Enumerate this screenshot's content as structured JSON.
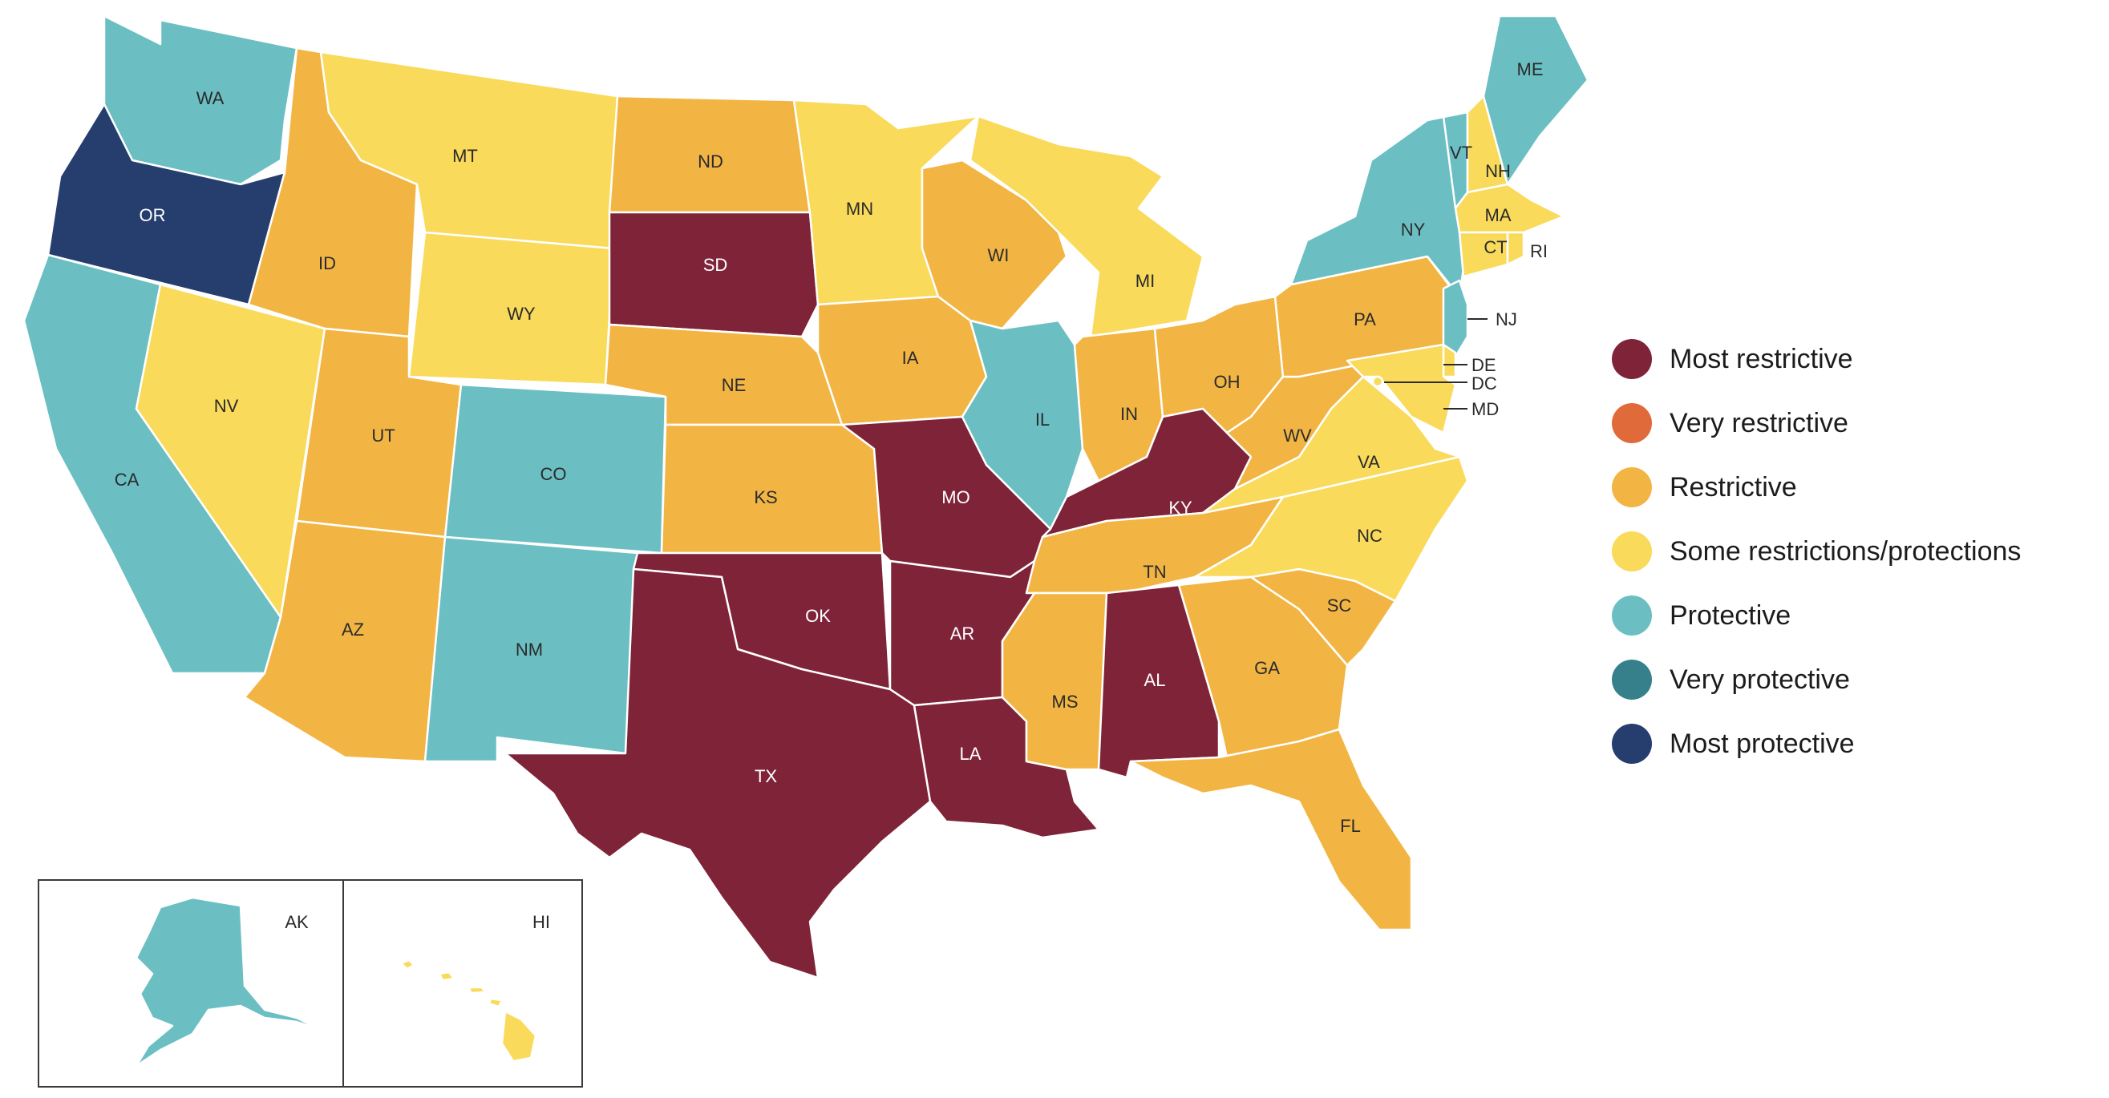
{
  "legend": [
    {
      "key": "most_restrictive",
      "label": "Most restrictive",
      "color": "#7F2438"
    },
    {
      "key": "very_restrictive",
      "label": "Very restrictive",
      "color": "#E06A3A"
    },
    {
      "key": "restrictive",
      "label": "Restrictive",
      "color": "#F2B544"
    },
    {
      "key": "some",
      "label": "Some restrictions/protections",
      "color": "#F9DA5A"
    },
    {
      "key": "protective",
      "label": "Protective",
      "color": "#6BBFC3"
    },
    {
      "key": "very_protective",
      "label": "Very protective",
      "color": "#36808C"
    },
    {
      "key": "most_protective",
      "label": "Most protective",
      "color": "#263E6E"
    }
  ],
  "states": {
    "WA": "protective",
    "OR": "most_protective",
    "CA": "protective",
    "NV": "some",
    "ID": "restrictive",
    "MT": "some",
    "WY": "some",
    "UT": "restrictive",
    "AZ": "restrictive",
    "CO": "protective",
    "NM": "protective",
    "ND": "restrictive",
    "SD": "most_restrictive",
    "NE": "restrictive",
    "KS": "restrictive",
    "OK": "most_restrictive",
    "TX": "most_restrictive",
    "MN": "some",
    "IA": "restrictive",
    "MO": "most_restrictive",
    "AR": "most_restrictive",
    "LA": "most_restrictive",
    "WI": "restrictive",
    "IL": "protective",
    "MI": "some",
    "IN": "restrictive",
    "OH": "restrictive",
    "KY": "most_restrictive",
    "TN": "restrictive",
    "MS": "restrictive",
    "AL": "most_restrictive",
    "GA": "restrictive",
    "FL": "restrictive",
    "SC": "restrictive",
    "NC": "some",
    "VA": "some",
    "WV": "restrictive",
    "PA": "restrictive",
    "NY": "protective",
    "VT": "protective",
    "NH": "some",
    "ME": "protective",
    "MA": "some",
    "CT": "some",
    "RI": "some",
    "NJ": "protective",
    "DE": "some",
    "MD": "some",
    "DC": "some",
    "AK": "protective",
    "HI": "some"
  },
  "state_labels": {
    "WA": "WA",
    "OR": "OR",
    "CA": "CA",
    "NV": "NV",
    "ID": "ID",
    "MT": "MT",
    "WY": "WY",
    "UT": "UT",
    "AZ": "AZ",
    "CO": "CO",
    "NM": "NM",
    "ND": "ND",
    "SD": "SD",
    "NE": "NE",
    "KS": "KS",
    "OK": "OK",
    "TX": "TX",
    "MN": "MN",
    "IA": "IA",
    "MO": "MO",
    "AR": "AR",
    "LA": "LA",
    "WI": "WI",
    "IL": "IL",
    "MI": "MI",
    "IN": "IN",
    "OH": "OH",
    "KY": "KY",
    "TN": "TN",
    "MS": "MS",
    "AL": "AL",
    "GA": "GA",
    "FL": "FL",
    "SC": "SC",
    "NC": "NC",
    "VA": "VA",
    "WV": "WV",
    "PA": "PA",
    "NY": "NY",
    "VT": "VT",
    "NH": "NH",
    "ME": "ME",
    "MA": "MA",
    "CT": "CT",
    "RI": "RI",
    "NJ": "NJ",
    "DE": "DE",
    "MD": "MD",
    "DC": "DC",
    "AK": "AK",
    "HI": "HI"
  }
}
